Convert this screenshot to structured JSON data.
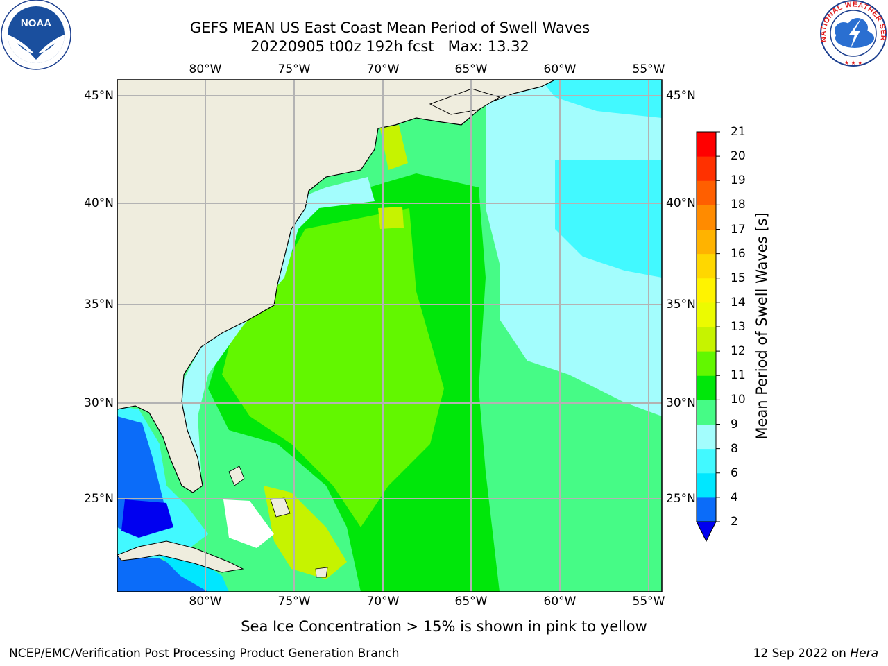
{
  "title": {
    "line1": "GEFS MEAN US East Coast Mean Period of Swell Waves",
    "line2": "20220905 t00z 192h fcst   Max: 13.32"
  },
  "map": {
    "lon_labels": [
      "80°W",
      "75°W",
      "70°W",
      "65°W",
      "60°W",
      "55°W"
    ],
    "lat_labels": [
      "45°N",
      "40°N",
      "35°N",
      "30°N",
      "25°N"
    ],
    "land_color": "#efedde",
    "gridline_color": "#b3b3b3"
  },
  "colorbar": {
    "label": "Mean Period of Swell Waves [s]",
    "ticks": [
      "2",
      "4",
      "6",
      "8",
      "9",
      "10",
      "11",
      "12",
      "13",
      "14",
      "15",
      "16",
      "17",
      "18",
      "19",
      "20",
      "21"
    ],
    "colors": [
      "#0b6cf9",
      "#00e7ff",
      "#42f9ff",
      "#a3fdfd",
      "#46fb86",
      "#00e70a",
      "#62f700",
      "#c6f300",
      "#ecfb00",
      "#fff300",
      "#ffd700",
      "#ffb300",
      "#ff8b00",
      "#ff5f00",
      "#ff3100",
      "#ff0000"
    ],
    "extend_color": "#0000f0"
  },
  "footnote": "Sea Ice Concentration > 15% is shown in pink to yellow",
  "credits": {
    "left": "NCEP/EMC/Verification Post Processing Product Generation Branch",
    "right_date": "12 Sep 2022 on ",
    "right_host": "Hera"
  },
  "logos": {
    "noaa_text": "NOAA",
    "nws_text": "NATIONAL WEATHER SERVICE"
  }
}
